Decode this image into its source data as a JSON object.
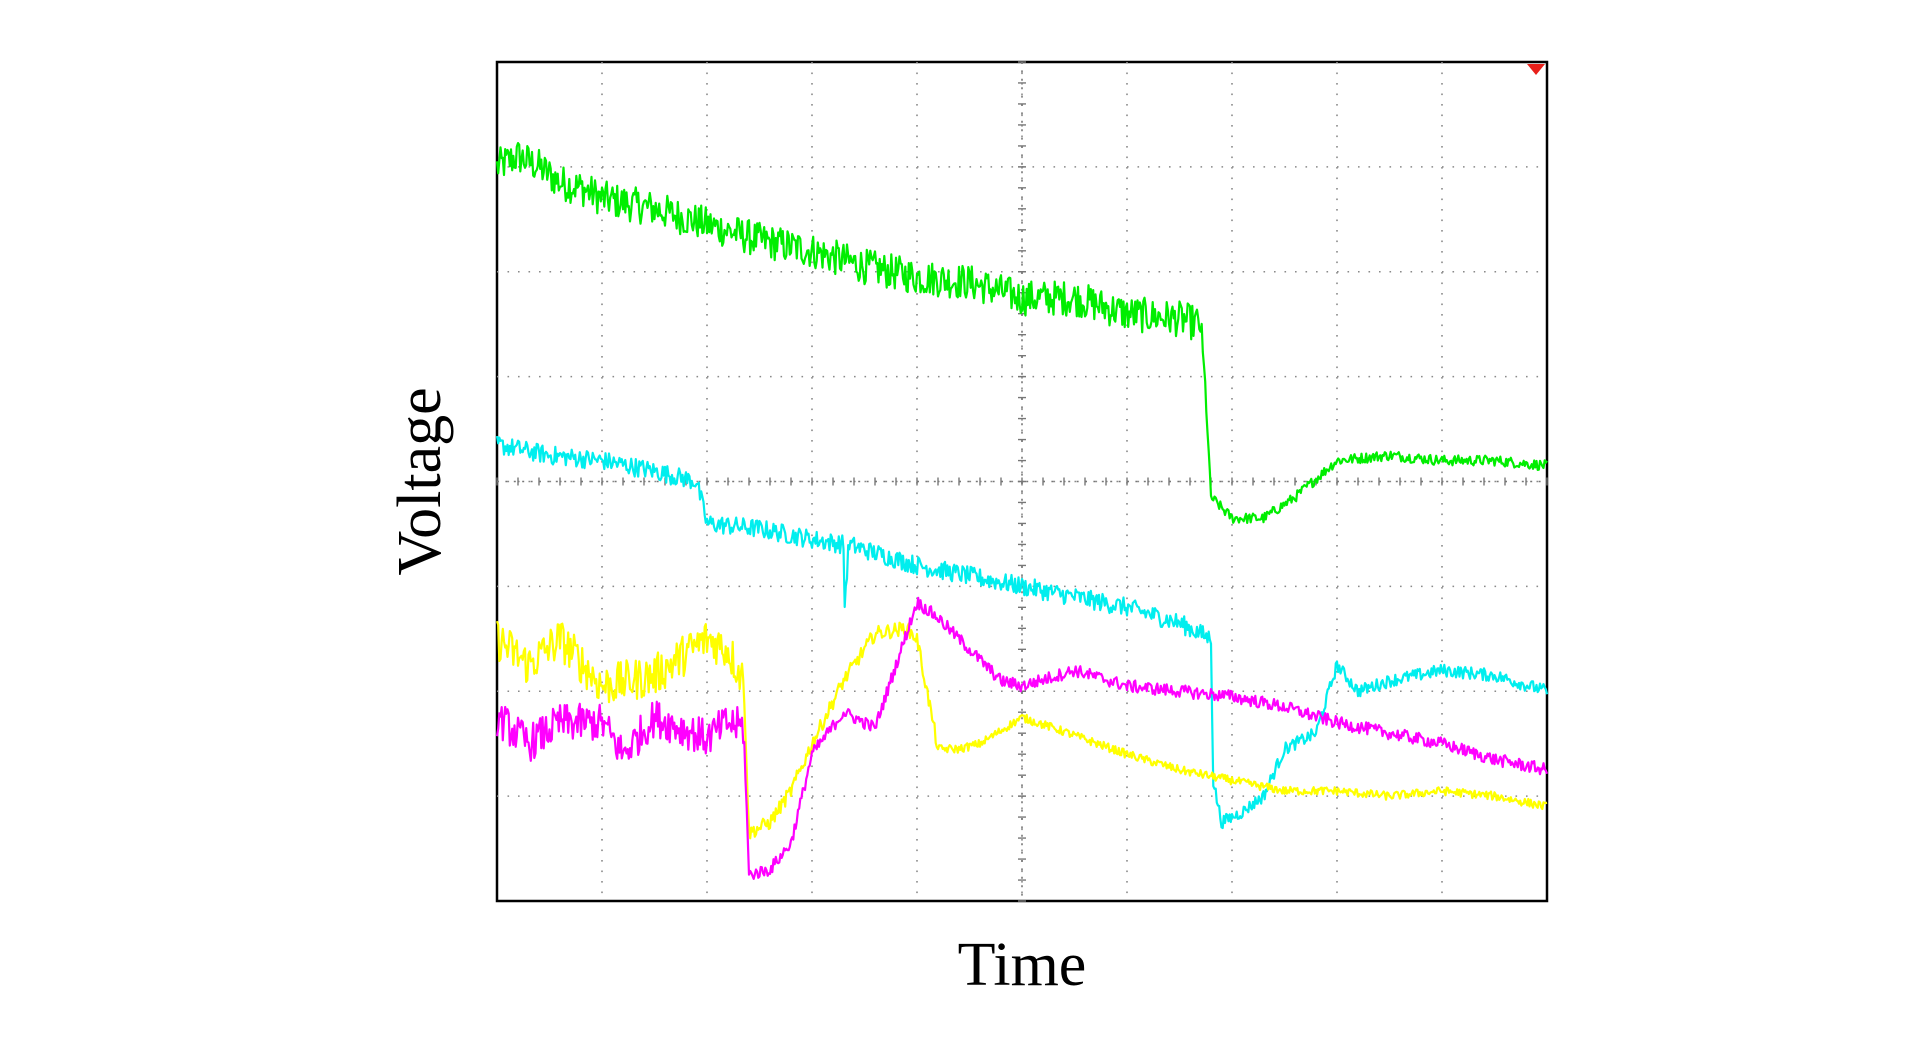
{
  "chart_data": {
    "type": "line",
    "title": "",
    "xlabel": "Time",
    "ylabel": "Voltage",
    "xlim": [
      0,
      10
    ],
    "ylim": [
      -4,
      4
    ],
    "grid": true,
    "grid_divisions": {
      "x": 10,
      "y": 8
    },
    "legend": "none",
    "trigger_marker_color": "#e8201a",
    "series": [
      {
        "color": "#00ee00",
        "x": [
          0,
          0.2,
          0.4,
          0.6,
          0.8,
          1.0,
          1.5,
          2.0,
          2.5,
          3.0,
          3.5,
          4.0,
          4.5,
          5.0,
          5.5,
          6.0,
          6.5,
          6.7,
          6.75,
          6.8,
          7.0,
          7.3,
          7.6,
          8.0,
          8.5,
          9.0,
          9.5,
          10
        ],
        "y": [
          3.0,
          3.1,
          3.0,
          2.85,
          2.8,
          2.7,
          2.6,
          2.45,
          2.3,
          2.2,
          2.05,
          1.95,
          1.9,
          1.75,
          1.75,
          1.6,
          1.55,
          1.5,
          0.8,
          -0.15,
          -0.35,
          -0.35,
          -0.15,
          0.2,
          0.25,
          0.2,
          0.2,
          0.15
        ]
      },
      {
        "color": "#00eeee",
        "x": [
          0,
          0.5,
          1.0,
          1.5,
          1.9,
          2.0,
          2.5,
          3.0,
          3.3,
          3.31,
          3.35,
          3.5,
          4.0,
          4.5,
          5.0,
          5.5,
          6.0,
          6.5,
          6.8,
          6.82,
          6.9,
          7.1,
          7.3,
          7.5,
          7.8,
          8.0,
          8.2,
          8.5,
          9.0,
          9.5,
          10
        ],
        "y": [
          0.35,
          0.25,
          0.2,
          0.1,
          0.0,
          -0.4,
          -0.45,
          -0.55,
          -0.6,
          -1.2,
          -0.6,
          -0.65,
          -0.8,
          -0.9,
          -1.0,
          -1.1,
          -1.2,
          -1.35,
          -1.5,
          -2.85,
          -3.25,
          -3.15,
          -3.0,
          -2.55,
          -2.4,
          -1.75,
          -2.0,
          -1.9,
          -1.8,
          -1.85,
          -2.0
        ]
      },
      {
        "color": "#ffff00",
        "x": [
          0,
          0.3,
          0.6,
          1.0,
          1.5,
          2.0,
          2.2,
          2.35,
          2.4,
          2.6,
          2.8,
          3.0,
          3.3,
          3.6,
          3.9,
          4.0,
          4.2,
          4.4,
          4.6,
          5.0,
          5.3,
          6.0,
          6.5,
          7.0,
          7.5,
          8.0,
          8.5,
          9.0,
          9.5,
          10
        ],
        "y": [
          -1.5,
          -1.75,
          -1.5,
          -1.95,
          -1.85,
          -1.5,
          -1.6,
          -1.9,
          -3.35,
          -3.25,
          -2.95,
          -2.5,
          -1.9,
          -1.45,
          -1.4,
          -1.5,
          -2.55,
          -2.55,
          -2.5,
          -2.25,
          -2.35,
          -2.6,
          -2.75,
          -2.85,
          -2.95,
          -2.95,
          -3.0,
          -2.95,
          -3.0,
          -3.1
        ]
      },
      {
        "color": "#ff00ff",
        "x": [
          0,
          0.3,
          0.6,
          1.0,
          1.2,
          1.5,
          2.0,
          2.2,
          2.35,
          2.4,
          2.6,
          2.8,
          3.0,
          3.3,
          3.6,
          3.8,
          4.0,
          4.2,
          4.4,
          4.6,
          4.8,
          5.0,
          5.5,
          6.0,
          6.5,
          7.0,
          7.5,
          8.0,
          8.5,
          9.0,
          9.5,
          10
        ],
        "y": [
          -2.25,
          -2.5,
          -2.3,
          -2.3,
          -2.6,
          -2.25,
          -2.45,
          -2.3,
          -2.35,
          -3.75,
          -3.7,
          -3.45,
          -2.6,
          -2.2,
          -2.35,
          -1.75,
          -1.15,
          -1.3,
          -1.5,
          -1.7,
          -1.9,
          -1.95,
          -1.8,
          -1.95,
          -2.0,
          -2.05,
          -2.15,
          -2.3,
          -2.4,
          -2.5,
          -2.65,
          -2.75
        ]
      }
    ]
  }
}
